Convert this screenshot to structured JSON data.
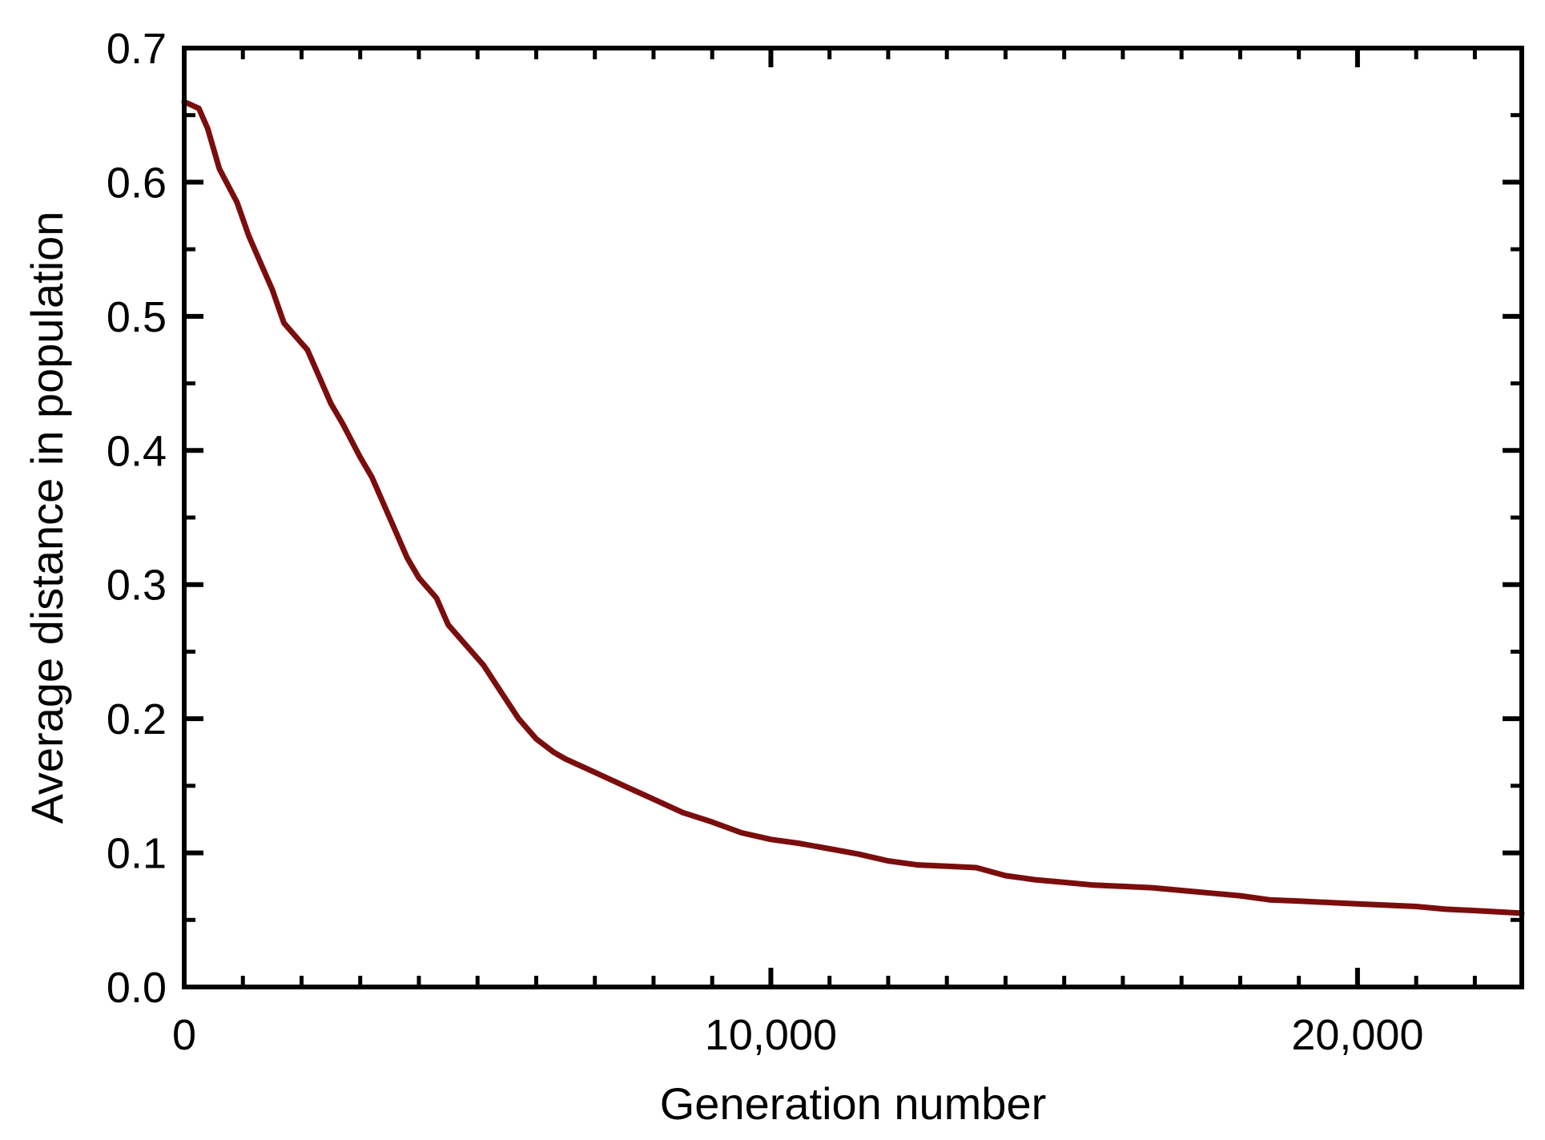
{
  "chart_data": {
    "type": "line",
    "title": "",
    "xlabel": "Generation number",
    "ylabel": "Average distance in population",
    "xlim": [
      0,
      22800
    ],
    "ylim": [
      0,
      0.7
    ],
    "grid": false,
    "legend": "none",
    "x_ticks": [
      0,
      10000,
      20000
    ],
    "x_tick_labels": [
      "0",
      "10,000",
      "20,000"
    ],
    "y_ticks": [
      0,
      0.1,
      0.2,
      0.3,
      0.4,
      0.5,
      0.6,
      0.7
    ],
    "y_tick_labels": [
      "0.0",
      "0.1",
      "0.2",
      "0.3",
      "0.4",
      "0.5",
      "0.6",
      "0.7"
    ],
    "x_minor_step": 1000,
    "y_minor_step": 0.05,
    "line_color": "#7b0d0d",
    "series": [
      {
        "x": [
          0,
          250,
          400,
          600,
          900,
          1100,
          1300,
          1500,
          1700,
          1900,
          2100,
          2300,
          2500,
          2700,
          3000,
          3200,
          3500,
          3800,
          4000,
          4300,
          4500,
          4800,
          5100,
          5400,
          5700,
          6000,
          6300,
          6500,
          7000,
          7500,
          8000,
          8500,
          9000,
          9500,
          10000,
          10500,
          11000,
          11500,
          12000,
          12500,
          13000,
          13500,
          14000,
          14500,
          15000,
          15500,
          16000,
          16500,
          17000,
          17500,
          18000,
          18500,
          19000,
          19500,
          20000,
          20500,
          21000,
          21500,
          22000,
          22800
        ],
        "y": [
          0.66,
          0.655,
          0.64,
          0.61,
          0.585,
          0.56,
          0.54,
          0.52,
          0.495,
          0.485,
          0.475,
          0.455,
          0.435,
          0.42,
          0.395,
          0.38,
          0.35,
          0.32,
          0.305,
          0.29,
          0.27,
          0.255,
          0.24,
          0.22,
          0.2,
          0.185,
          0.175,
          0.17,
          0.16,
          0.15,
          0.14,
          0.13,
          0.123,
          0.115,
          0.11,
          0.107,
          0.103,
          0.099,
          0.094,
          0.091,
          0.09,
          0.089,
          0.083,
          0.08,
          0.078,
          0.076,
          0.075,
          0.074,
          0.072,
          0.07,
          0.068,
          0.065,
          0.064,
          0.063,
          0.062,
          0.061,
          0.06,
          0.058,
          0.057,
          0.055
        ]
      }
    ]
  }
}
